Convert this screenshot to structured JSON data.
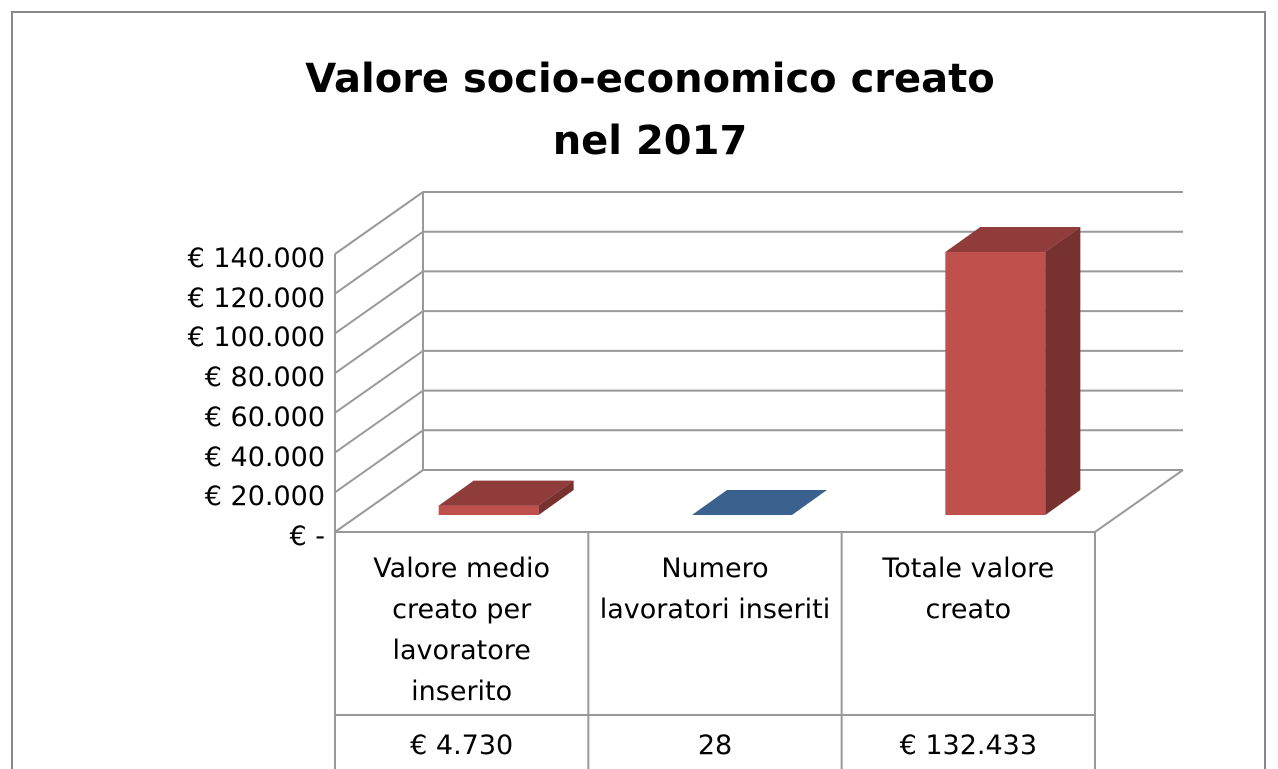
{
  "chart_data": {
    "type": "bar3d",
    "title": "Valore socio-economico creato nel 2017",
    "categories": [
      "Valore medio creato per lavoratore inserito",
      "Numero lavoratori inseriti",
      "Totale valore creato"
    ],
    "values": [
      4730,
      28,
      132433
    ],
    "value_labels": [
      "€ 4.730",
      "28",
      "€ 132.433"
    ],
    "colors": [
      "#c0504d",
      "#4f81bd",
      "#c0504d"
    ],
    "ylim": [
      0,
      140000
    ],
    "yticks": [
      {
        "value": 0,
        "label": "€ -"
      },
      {
        "value": 20000,
        "label": "€ 20.000"
      },
      {
        "value": 40000,
        "label": "€ 40.000"
      },
      {
        "value": 60000,
        "label": "€ 60.000"
      },
      {
        "value": 80000,
        "label": "€ 80.000"
      },
      {
        "value": 100000,
        "label": "€ 100.000"
      },
      {
        "value": 120000,
        "label": "€ 120.000"
      },
      {
        "value": 140000,
        "label": "€ 140.000"
      }
    ],
    "grid": true
  }
}
